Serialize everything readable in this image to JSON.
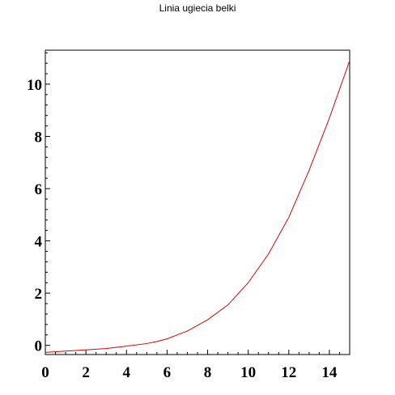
{
  "chart_data": {
    "type": "line",
    "title": "Linia ugiecia belki",
    "xlabel": "",
    "ylabel": "",
    "xlim": [
      0,
      15
    ],
    "ylim": [
      -0.35,
      11.3
    ],
    "grid": false,
    "x_ticks": [
      0,
      2,
      4,
      6,
      8,
      10,
      12,
      14
    ],
    "y_ticks": [
      0,
      2,
      4,
      6,
      8,
      10
    ],
    "series": [
      {
        "color": "#e00000",
        "x": [
          0,
          1,
          2,
          3,
          4,
          5,
          5.5,
          6,
          7,
          8,
          9,
          10,
          11,
          12,
          13,
          14,
          15
        ],
        "y": [
          -0.27,
          -0.22,
          -0.17,
          -0.12,
          -0.03,
          0.07,
          0.15,
          0.25,
          0.55,
          0.98,
          1.55,
          2.4,
          3.5,
          4.9,
          6.7,
          8.7,
          10.9
        ]
      }
    ]
  }
}
